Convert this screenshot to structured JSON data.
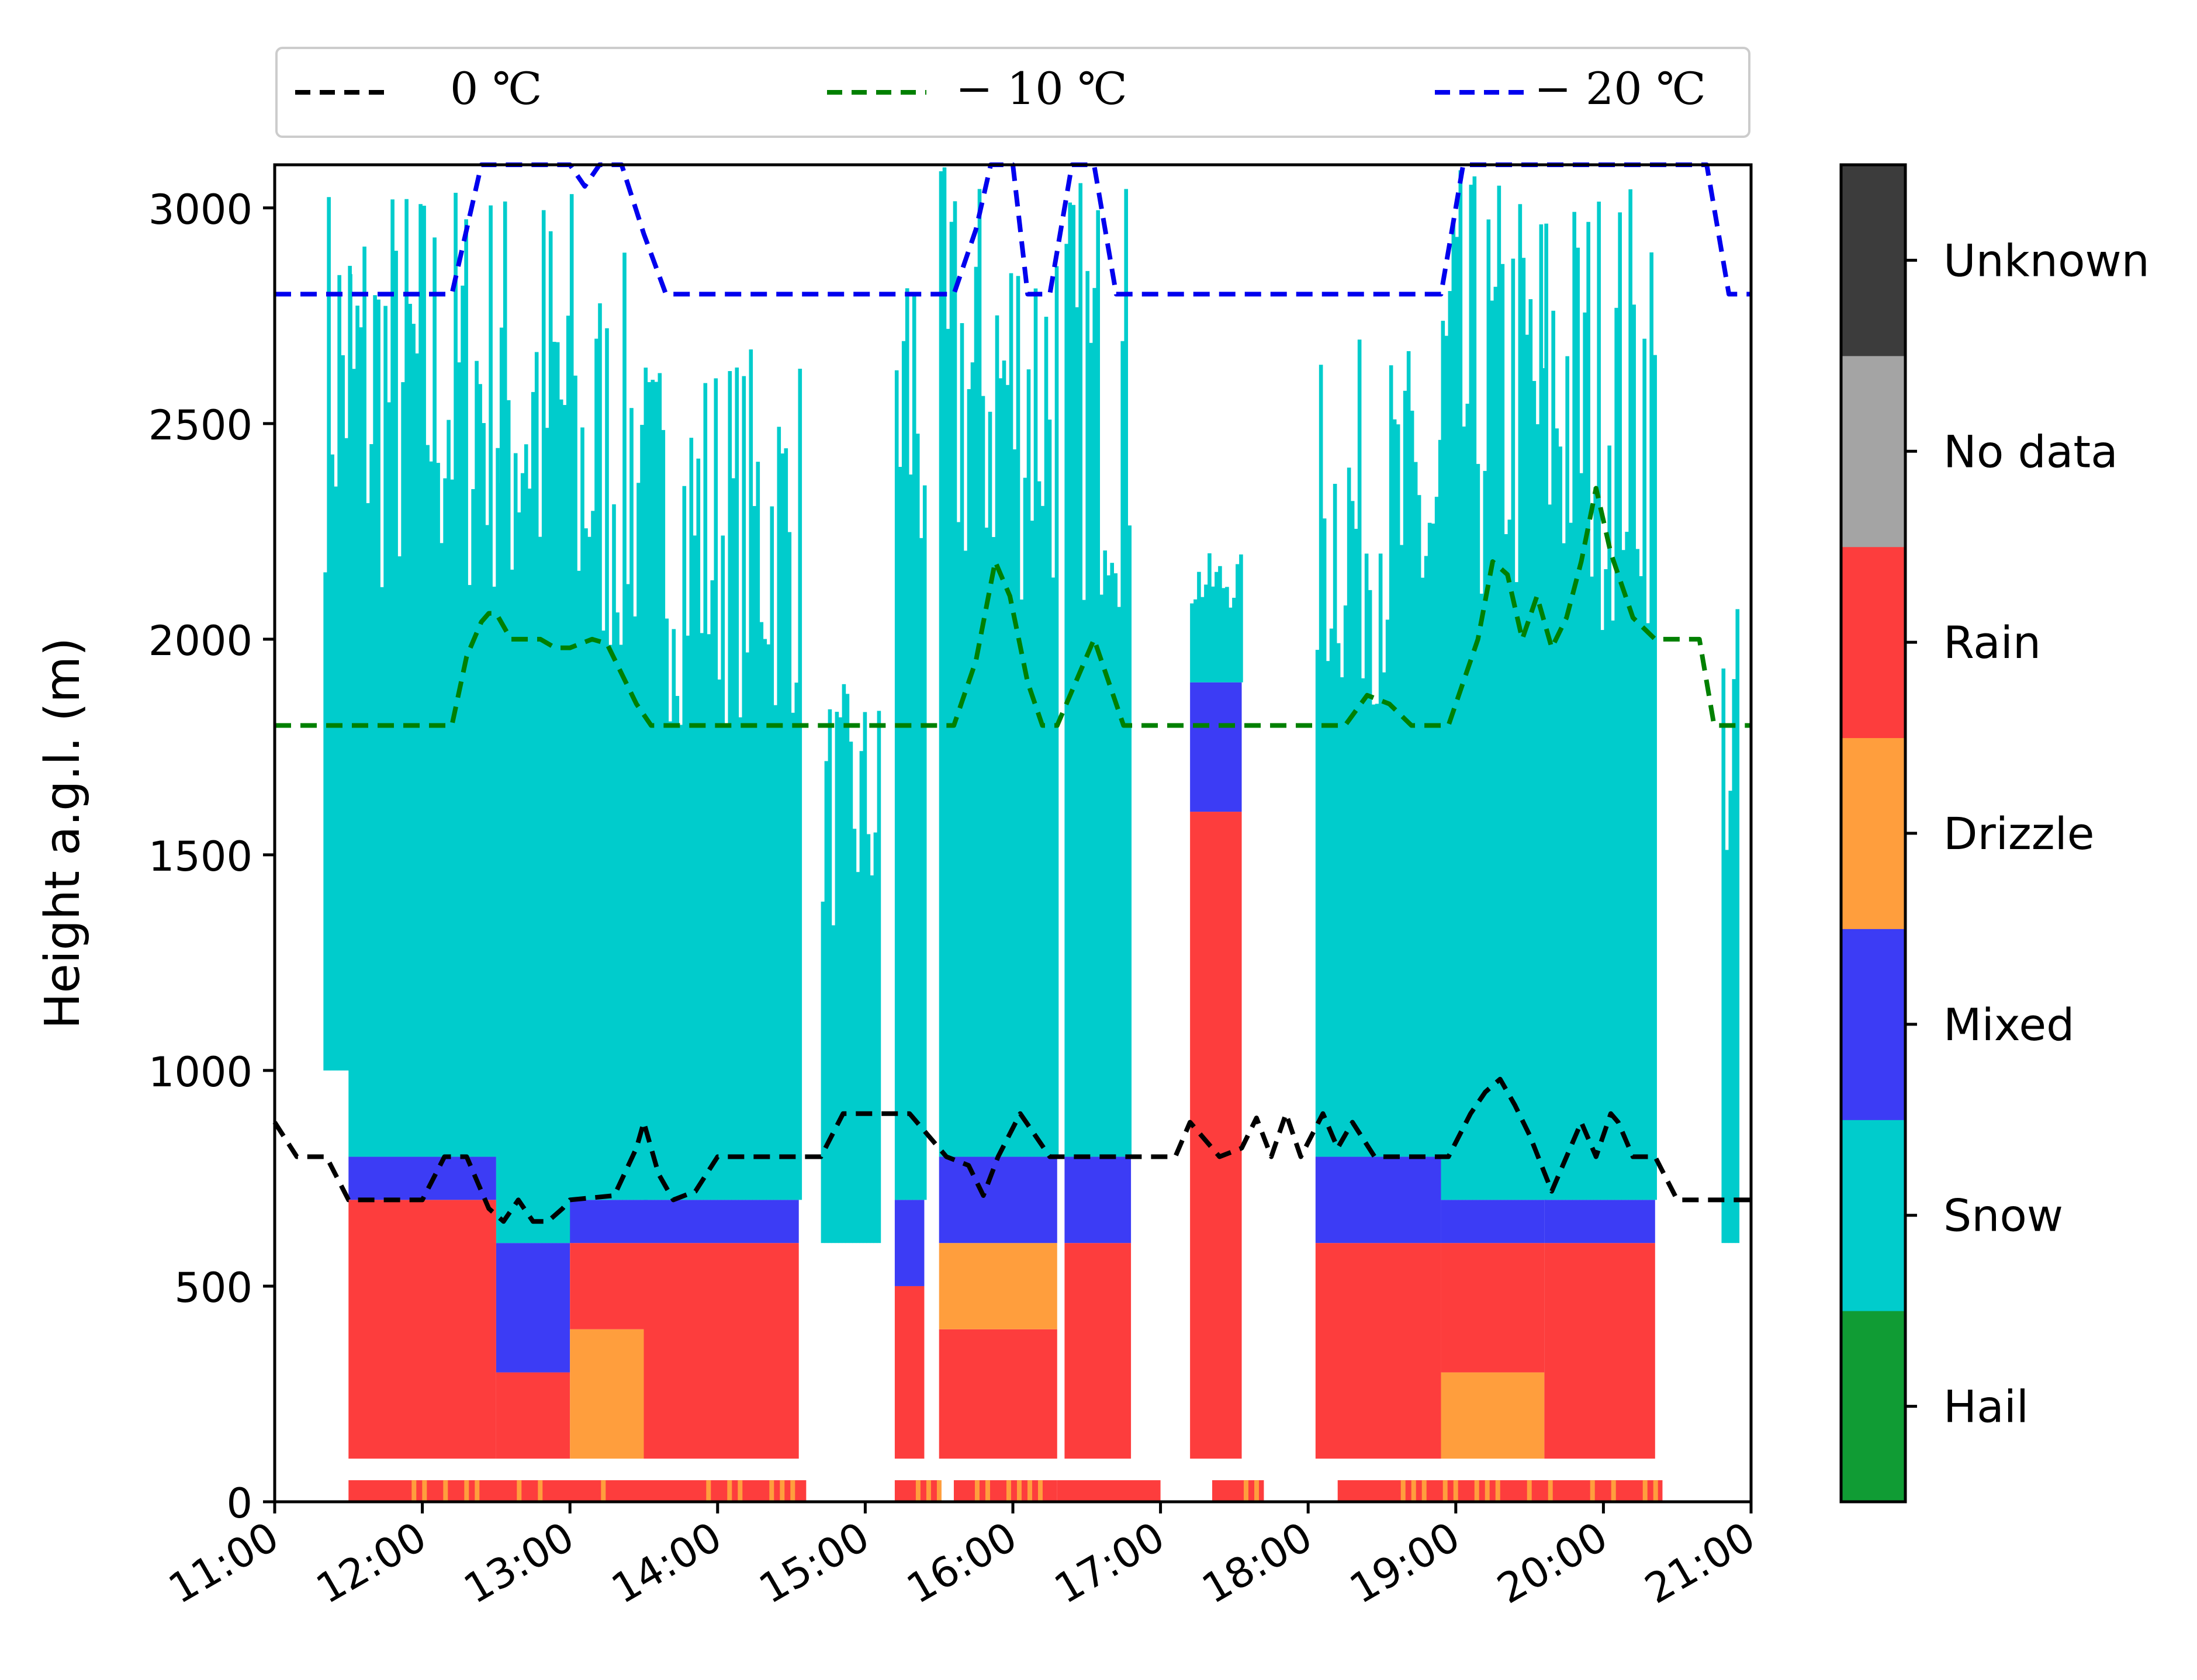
{
  "chart_data": {
    "type": "heatmap",
    "title": "",
    "xlabel": "",
    "ylabel": "Height a.g.l. (m)",
    "xlim": [
      "11:00",
      "21:00"
    ],
    "ylim": [
      0,
      3100
    ],
    "x_ticks": [
      "11:00",
      "12:00",
      "13:00",
      "14:00",
      "15:00",
      "16:00",
      "17:00",
      "18:00",
      "19:00",
      "20:00",
      "21:00"
    ],
    "y_ticks": [
      0,
      500,
      1000,
      1500,
      2000,
      2500,
      3000
    ],
    "grid": false,
    "legend": {
      "placement": "top",
      "entries": [
        {
          "label": "0  ℃",
          "color": "#000000",
          "style": "dashed"
        },
        {
          "label": "− 10 ℃",
          "color": "#008000",
          "style": "dashed"
        },
        {
          "label": "− 20 ℃",
          "color": "#0000ee",
          "style": "dashed"
        }
      ]
    },
    "colorbar": {
      "categories": [
        "Hail",
        "Snow",
        "Mixed",
        "Drizzle",
        "Rain",
        "No data",
        "Unknown"
      ],
      "colors": [
        "#109c34",
        "#00cccc",
        "#3c3cf5",
        "#ff9e3d",
        "#fd3d3d",
        "#a4a4a4",
        "#3c3c3c"
      ]
    },
    "classification": {
      "description": "Hydrometeor class vs time (hours) and height; each period lists classes from bottom to top.",
      "periods": [
        {
          "start": 11.33,
          "end": 11.5,
          "layers": [
            [
              "Snow",
              1000,
              3100
            ]
          ]
        },
        {
          "start": 11.5,
          "end": 12.5,
          "layers": [
            [
              "Rain",
              100,
              700
            ],
            [
              "Mixed",
              700,
              800
            ],
            [
              "Snow",
              800,
              3100
            ]
          ]
        },
        {
          "start": 12.5,
          "end": 13.0,
          "layers": [
            [
              "Rain",
              100,
              300
            ],
            [
              "Mixed",
              300,
              600
            ],
            [
              "Snow",
              600,
              3100
            ]
          ]
        },
        {
          "start": 13.0,
          "end": 13.5,
          "layers": [
            [
              "Drizzle",
              100,
              400
            ],
            [
              "Rain",
              400,
              600
            ],
            [
              "Mixed",
              600,
              700
            ],
            [
              "Snow",
              700,
              2900
            ]
          ]
        },
        {
          "start": 13.5,
          "end": 14.55,
          "layers": [
            [
              "Rain",
              100,
              600
            ],
            [
              "Mixed",
              600,
              700
            ],
            [
              "Snow",
              700,
              2700
            ]
          ]
        },
        {
          "start": 14.7,
          "end": 15.1,
          "layers": [
            [
              "Snow",
              600,
              1900
            ]
          ]
        },
        {
          "start": 15.2,
          "end": 15.4,
          "layers": [
            [
              "Rain",
              100,
              500
            ],
            [
              "Mixed",
              500,
              700
            ],
            [
              "Snow",
              700,
              3100
            ]
          ]
        },
        {
          "start": 15.5,
          "end": 16.3,
          "layers": [
            [
              "Rain",
              100,
              400
            ],
            [
              "Drizzle",
              400,
              600
            ],
            [
              "Mixed",
              600,
              800
            ],
            [
              "Snow",
              800,
              3100
            ]
          ]
        },
        {
          "start": 16.35,
          "end": 16.8,
          "layers": [
            [
              "Rain",
              100,
              600
            ],
            [
              "Mixed",
              600,
              800
            ],
            [
              "Snow",
              800,
              3100
            ]
          ]
        },
        {
          "start": 17.2,
          "end": 17.55,
          "layers": [
            [
              "Rain",
              100,
              1600
            ],
            [
              "Mixed",
              1600,
              1900
            ],
            [
              "Snow",
              1900,
              2200
            ]
          ]
        },
        {
          "start": 18.05,
          "end": 18.9,
          "layers": [
            [
              "Rain",
              100,
              600
            ],
            [
              "Mixed",
              600,
              800
            ],
            [
              "Snow",
              800,
              2700
            ]
          ]
        },
        {
          "start": 18.9,
          "end": 19.6,
          "layers": [
            [
              "Drizzle",
              100,
              300
            ],
            [
              "Rain",
              300,
              600
            ],
            [
              "Mixed",
              600,
              700
            ],
            [
              "Snow",
              700,
              3100
            ]
          ]
        },
        {
          "start": 19.6,
          "end": 20.35,
          "layers": [
            [
              "Rain",
              100,
              600
            ],
            [
              "Mixed",
              600,
              700
            ],
            [
              "Snow",
              700,
              3100
            ]
          ]
        },
        {
          "start": 20.8,
          "end": 20.9,
          "layers": [
            [
              "Snow",
              600,
              2100
            ]
          ]
        }
      ],
      "surface_strip": {
        "height_range": [
          0,
          50
        ],
        "classes": [
          "Rain",
          "Drizzle"
        ],
        "segments": [
          [
            11.5,
            14.6
          ],
          [
            15.2,
            15.5
          ],
          [
            15.6,
            16.3
          ],
          [
            16.3,
            17.0
          ],
          [
            17.35,
            17.7
          ],
          [
            18.2,
            20.4
          ]
        ]
      }
    },
    "series": [
      {
        "name": "0  ℃",
        "color": "#000000",
        "style": "dashed",
        "x": [
          11.0,
          11.15,
          11.35,
          11.5,
          12.0,
          12.15,
          12.3,
          12.45,
          12.55,
          12.65,
          12.75,
          12.85,
          12.95,
          13.0,
          13.3,
          13.45,
          13.5,
          13.6,
          13.7,
          13.85,
          14.0,
          14.7,
          14.85,
          15.3,
          15.55,
          15.7,
          15.8,
          15.9,
          16.05,
          16.25,
          16.35,
          16.65,
          16.95,
          17.1,
          17.2,
          17.4,
          17.55,
          17.65,
          17.75,
          17.85,
          17.95,
          18.1,
          18.2,
          18.3,
          18.45,
          18.55,
          18.65,
          18.75,
          18.95,
          19.1,
          19.2,
          19.3,
          19.4,
          19.5,
          19.65,
          19.75,
          19.85,
          19.95,
          20.05,
          20.1,
          20.2,
          20.35,
          20.5,
          20.75,
          21.0
        ],
        "y": [
          880,
          800,
          800,
          700,
          700,
          800,
          800,
          680,
          650,
          700,
          650,
          650,
          680,
          700,
          710,
          820,
          880,
          760,
          700,
          720,
          800,
          800,
          900,
          900,
          800,
          780,
          710,
          800,
          900,
          800,
          800,
          800,
          800,
          800,
          880,
          800,
          820,
          890,
          800,
          900,
          800,
          900,
          820,
          880,
          800,
          800,
          800,
          800,
          800,
          900,
          950,
          980,
          920,
          850,
          720,
          800,
          880,
          800,
          900,
          880,
          800,
          800,
          700,
          700,
          700
        ]
      },
      {
        "name": "− 10 ℃",
        "color": "#008000",
        "style": "dashed",
        "x": [
          11.0,
          12.2,
          12.3,
          12.4,
          12.45,
          12.5,
          12.6,
          12.8,
          12.9,
          13.0,
          13.15,
          13.25,
          13.45,
          13.55,
          14.0,
          15.6,
          15.75,
          15.88,
          15.98,
          16.1,
          16.2,
          16.3,
          16.55,
          16.75,
          17.0,
          18.25,
          18.4,
          18.55,
          18.7,
          18.8,
          18.95,
          19.15,
          19.25,
          19.35,
          19.45,
          19.55,
          19.65,
          19.75,
          19.85,
          19.95,
          20.05,
          20.2,
          20.35,
          20.45,
          20.55,
          20.65,
          20.75,
          21.0
        ],
        "y": [
          1800,
          1800,
          1960,
          2040,
          2060,
          2060,
          2000,
          2000,
          1980,
          1980,
          2000,
          1990,
          1850,
          1800,
          1800,
          1800,
          1950,
          2180,
          2100,
          1900,
          1800,
          1800,
          2000,
          1800,
          1800,
          1800,
          1870,
          1850,
          1800,
          1800,
          1800,
          2000,
          2180,
          2150,
          2000,
          2100,
          1980,
          2050,
          2180,
          2350,
          2200,
          2050,
          2000,
          2000,
          2000,
          2000,
          1800,
          1800
        ]
      },
      {
        "name": "− 20 ℃",
        "color": "#0000ee",
        "style": "dashed",
        "x": [
          11.0,
          12.2,
          12.4,
          12.55,
          13.0,
          13.1,
          13.2,
          13.35,
          13.5,
          13.65,
          14.0,
          15.6,
          15.75,
          15.85,
          16.0,
          16.1,
          16.25,
          16.4,
          16.55,
          16.7,
          17.0,
          18.9,
          19.05,
          19.2,
          20.7,
          20.85,
          21.0
        ],
        "y": [
          2800,
          2800,
          3100,
          3100,
          3100,
          3050,
          3100,
          3100,
          2940,
          2800,
          2800,
          2800,
          2950,
          3100,
          3100,
          2800,
          2800,
          3100,
          3100,
          2800,
          2800,
          2800,
          3100,
          3100,
          3100,
          2800,
          2800
        ]
      }
    ]
  }
}
